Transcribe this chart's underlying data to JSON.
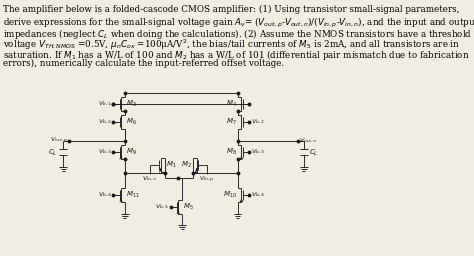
{
  "background_color": "#f2ede2",
  "text_color": "#000000",
  "fig_width": 4.74,
  "fig_height": 2.56,
  "dpi": 100,
  "line_color": "#1a1a1a",
  "lw": 0.65,
  "text_lines": [
    "The amplifier below is a folded-cascode CMOS amplifier: (1) Using transistor small-signal parameters,",
    "derive expressions for the small-signal voltage gain $A_v$= ($V_{out,p}$-$V_{out,n}$)/($V_{in,p}$-$V_{in,n}$), and the input and output",
    "impedances (neglect $C_L$ when doing the calculations). (2) Assume the NMOS transistors have a threshold",
    "voltage $V_{TH, NMOS}$ =0.5V, $\\mu_n C_{ox}$ =100μA/V$^2$, the bias/tail currents of $M_5$ is 2mA, and all transistors are in",
    "saturation. If $M_1$ has a W/L of 100 and $M_2$ has a W/L of 101 (differential pair mismatch due to fabrication",
    "errors), numerically calculate the input-referred offset voltage."
  ],
  "text_fs": 6.3,
  "label_fs": 4.6,
  "mosfet_fs": 5.0
}
